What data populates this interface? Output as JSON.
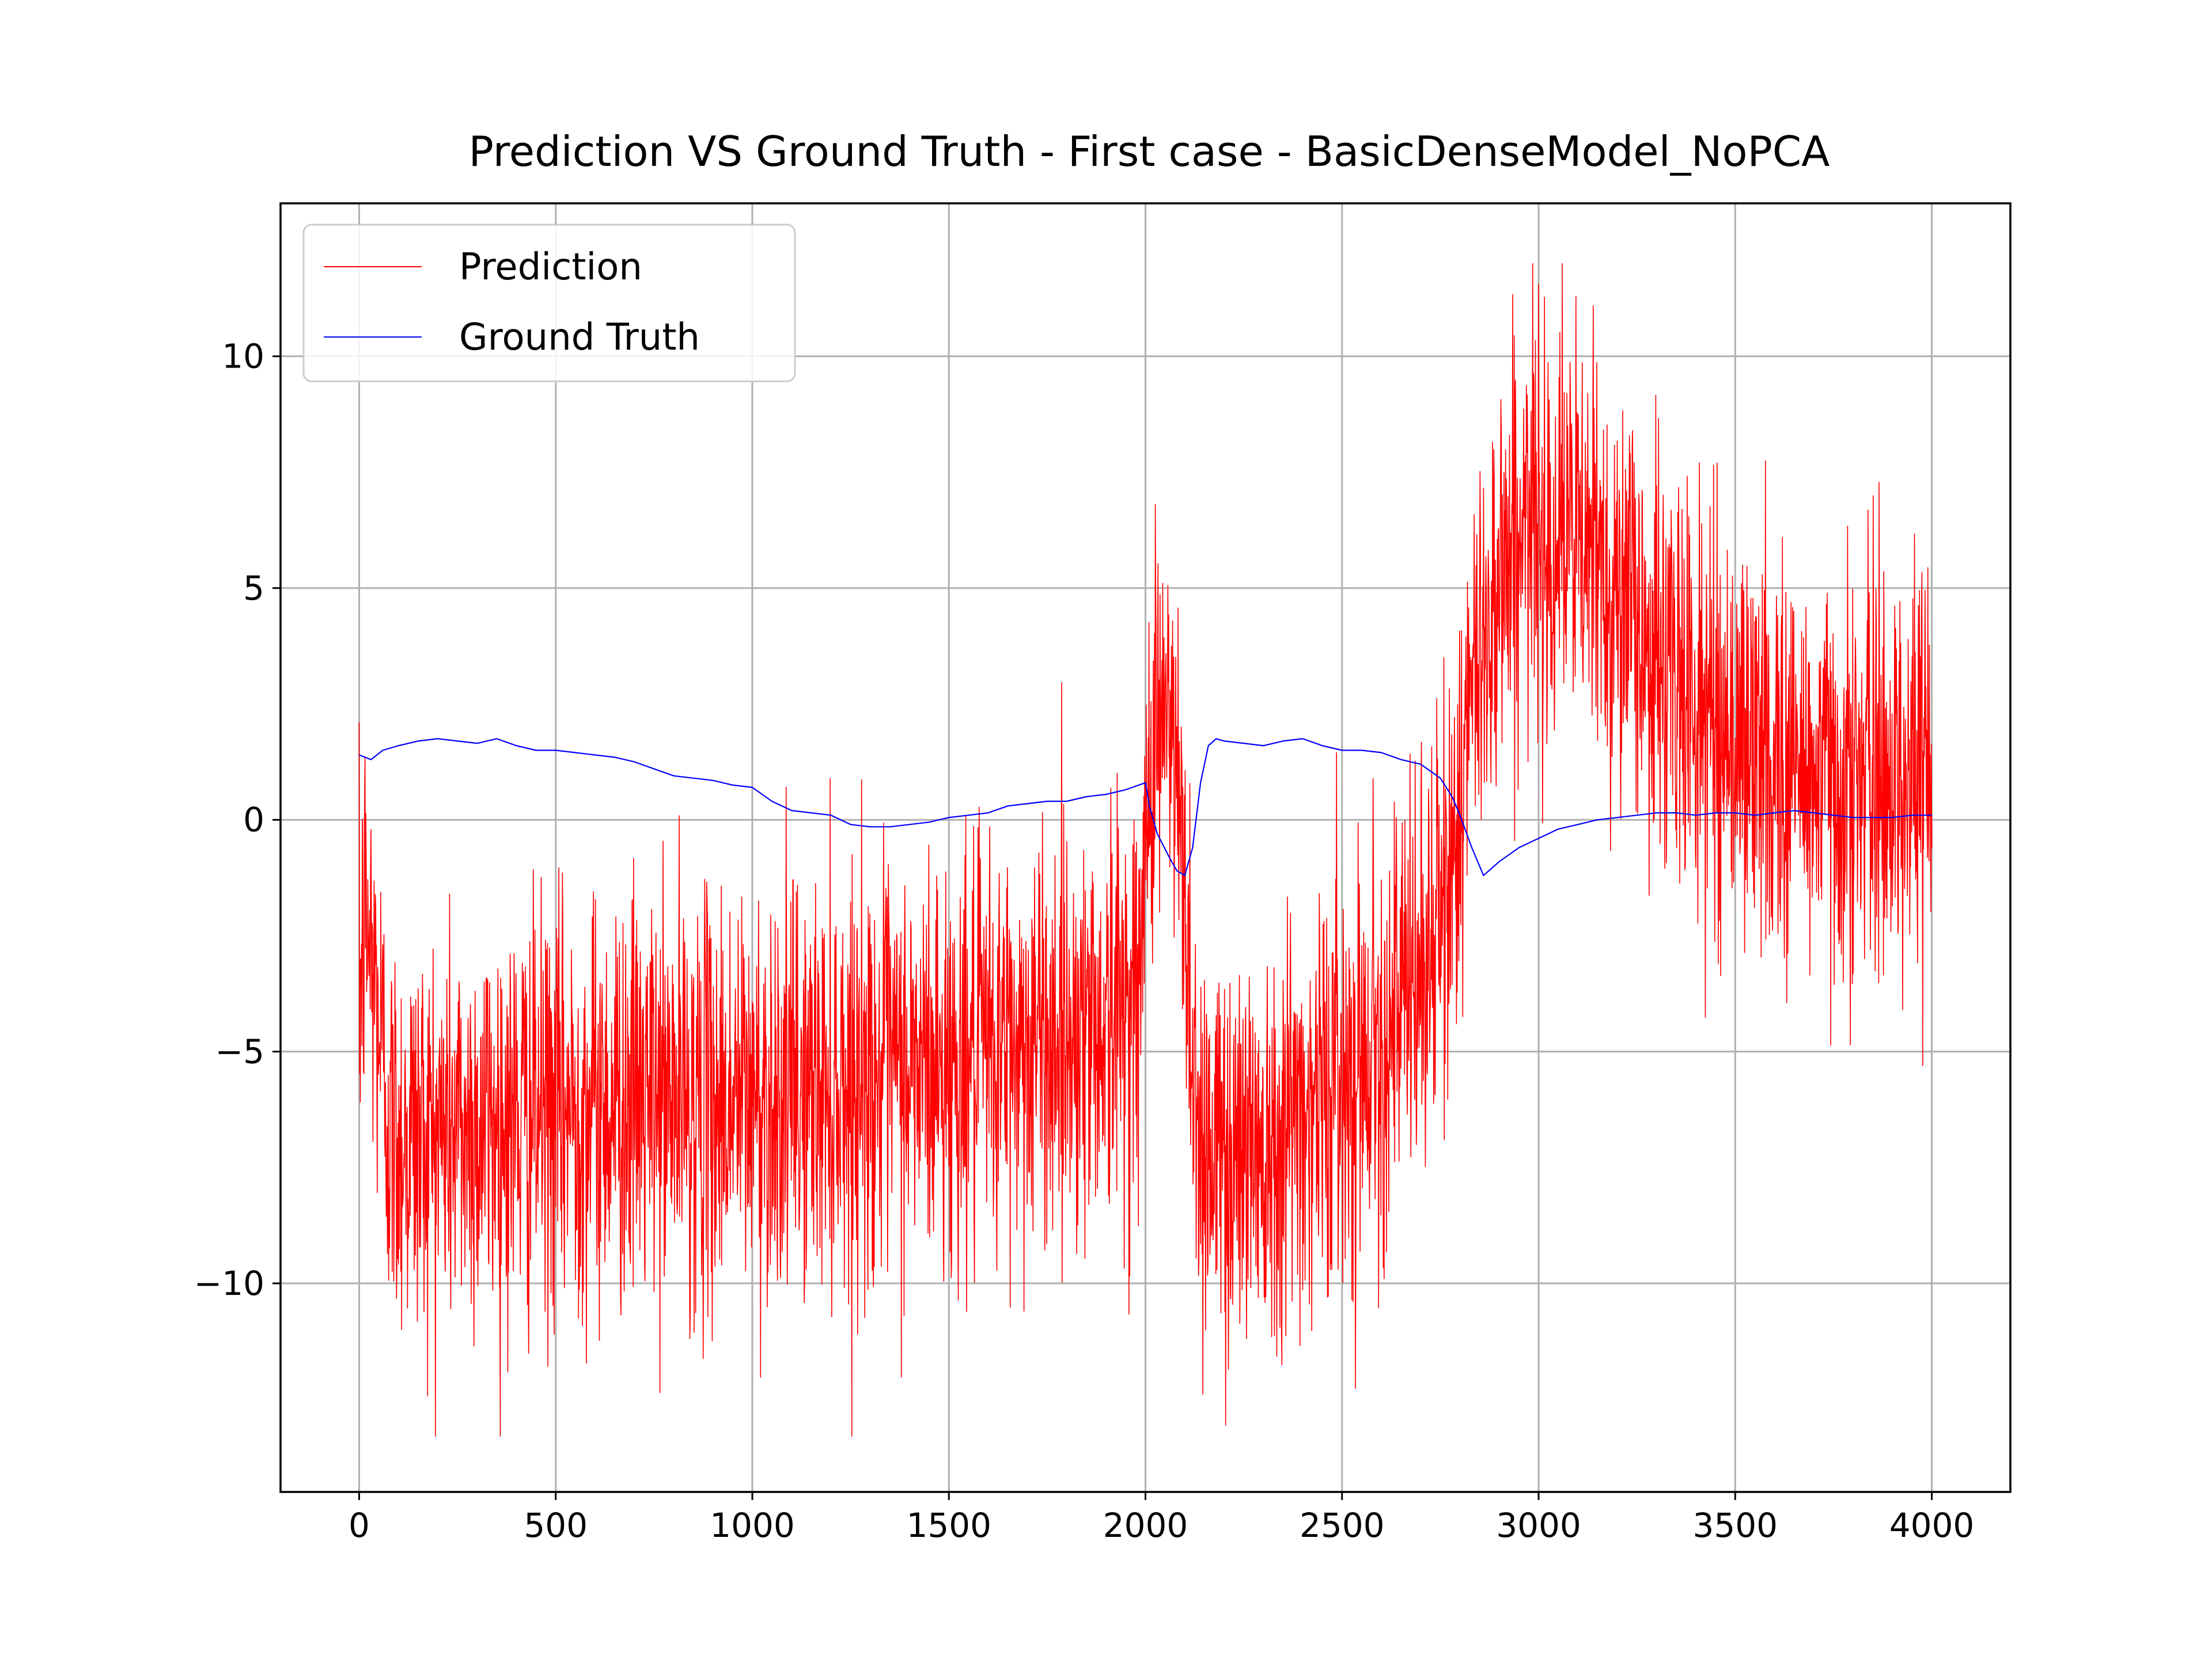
{
  "chart_data": {
    "type": "line",
    "title": "Prediction VS Ground Truth - First case - BasicDenseModel_NoPCA",
    "xlabel": "",
    "ylabel": "",
    "xlim": [
      -200,
      4200
    ],
    "ylim": [
      -14.5,
      13.3
    ],
    "grid": true,
    "legend_position": "upper-left",
    "x_ticks": [
      0,
      500,
      1000,
      1500,
      2000,
      2500,
      3000,
      3500,
      4000
    ],
    "x_tick_labels": [
      "0",
      "500",
      "1000",
      "1500",
      "2000",
      "2500",
      "3000",
      "3500",
      "4000"
    ],
    "y_ticks": [
      -10,
      -5,
      0,
      5,
      10
    ],
    "y_tick_labels": [
      "−10",
      "−5",
      "0",
      "5",
      "10"
    ],
    "series": [
      {
        "name": "Prediction",
        "color": "#ff0000",
        "noise_sigma": 2.2,
        "envelope_x": [
          0,
          15,
          40,
          80,
          150,
          300,
          500,
          700,
          900,
          1100,
          1300,
          1500,
          1700,
          1900,
          1990,
          2000,
          2010,
          2030,
          2060,
          2080,
          2100,
          2120,
          2140,
          2200,
          2300,
          2400,
          2500,
          2600,
          2680,
          2720,
          2760,
          2800,
          2850,
          2900,
          3000,
          3100,
          3200,
          3300,
          3400,
          3500,
          3600,
          3700,
          3800,
          3900,
          4000
        ],
        "envelope_y": [
          -4.0,
          -2.0,
          -3.5,
          -6.8,
          -6.8,
          -6.6,
          -6.3,
          -6.0,
          -6.1,
          -5.9,
          -5.5,
          -5.3,
          -4.8,
          -4.3,
          -3.5,
          -1.0,
          1.5,
          2.5,
          2.0,
          0.5,
          -1.5,
          -5.0,
          -7.0,
          -7.2,
          -6.8,
          -6.2,
          -5.5,
          -4.6,
          -3.8,
          -3.0,
          -2.0,
          0.5,
          3.5,
          5.5,
          6.5,
          6.0,
          5.0,
          3.5,
          2.5,
          1.8,
          1.3,
          1.0,
          0.9,
          1.0,
          1.1
        ]
      },
      {
        "name": "Ground Truth",
        "color": "#0000ff",
        "x": [
          0,
          30,
          60,
          100,
          150,
          200,
          250,
          300,
          350,
          400,
          450,
          500,
          550,
          600,
          650,
          700,
          750,
          800,
          850,
          900,
          950,
          1000,
          1050,
          1100,
          1150,
          1200,
          1250,
          1300,
          1350,
          1400,
          1450,
          1500,
          1550,
          1600,
          1650,
          1700,
          1750,
          1800,
          1850,
          1900,
          1950,
          2000,
          2010,
          2030,
          2060,
          2080,
          2100,
          2120,
          2140,
          2160,
          2180,
          2200,
          2250,
          2300,
          2350,
          2400,
          2450,
          2500,
          2550,
          2600,
          2650,
          2700,
          2750,
          2780,
          2800,
          2830,
          2860,
          2900,
          2950,
          3000,
          3050,
          3100,
          3150,
          3200,
          3250,
          3300,
          3350,
          3400,
          3450,
          3500,
          3550,
          3600,
          3650,
          3700,
          3750,
          3800,
          3850,
          3900,
          3950,
          4000
        ],
        "y": [
          1.4,
          1.3,
          1.5,
          1.6,
          1.7,
          1.75,
          1.7,
          1.65,
          1.75,
          1.6,
          1.5,
          1.5,
          1.45,
          1.4,
          1.35,
          1.25,
          1.1,
          0.95,
          0.9,
          0.85,
          0.75,
          0.7,
          0.4,
          0.2,
          0.15,
          0.1,
          -0.1,
          -0.15,
          -0.15,
          -0.1,
          -0.05,
          0.05,
          0.1,
          0.15,
          0.3,
          0.35,
          0.4,
          0.4,
          0.5,
          0.55,
          0.65,
          0.8,
          0.3,
          -0.3,
          -0.8,
          -1.1,
          -1.2,
          -0.6,
          0.8,
          1.6,
          1.75,
          1.7,
          1.65,
          1.6,
          1.7,
          1.75,
          1.6,
          1.5,
          1.5,
          1.45,
          1.3,
          1.2,
          0.9,
          0.5,
          0.1,
          -0.6,
          -1.2,
          -0.9,
          -0.6,
          -0.4,
          -0.2,
          -0.1,
          0.0,
          0.05,
          0.1,
          0.15,
          0.15,
          0.1,
          0.15,
          0.15,
          0.1,
          0.15,
          0.2,
          0.15,
          0.1,
          0.05,
          0.05,
          0.05,
          0.1,
          0.1
        ]
      }
    ]
  }
}
